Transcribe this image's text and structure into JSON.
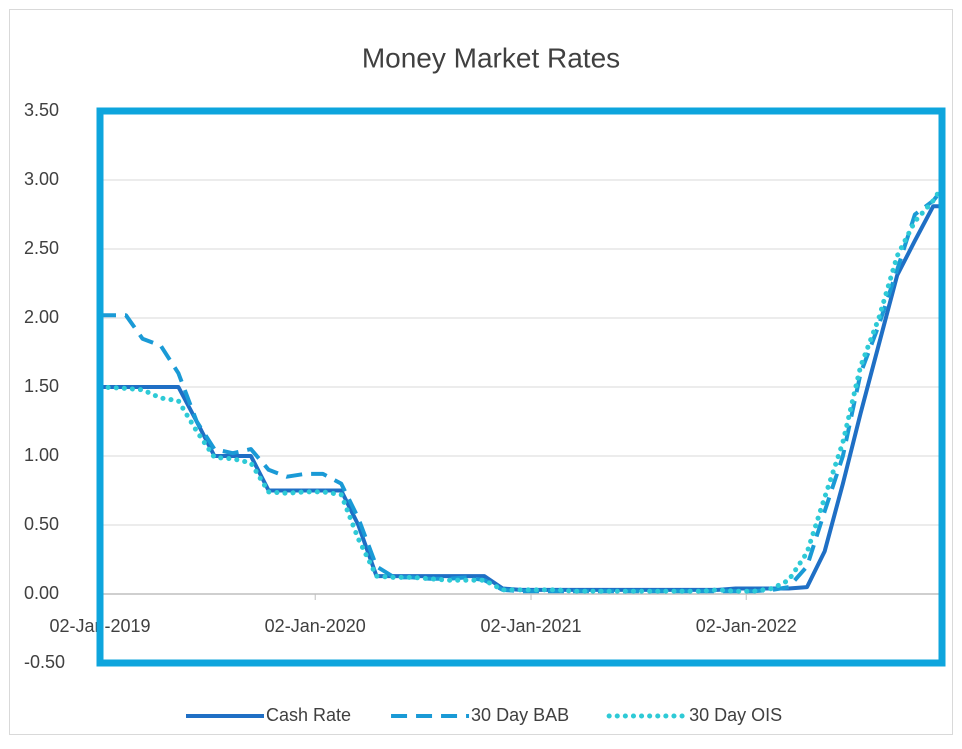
{
  "chart_data": {
    "type": "line",
    "title": "Money Market Rates",
    "x": [
      "2019-01-02",
      "2019-02-15",
      "2019-03-15",
      "2019-04-15",
      "2019-05-15",
      "2019-06-15",
      "2019-07-15",
      "2019-08-15",
      "2019-09-15",
      "2019-10-15",
      "2019-11-15",
      "2019-12-15",
      "2020-01-15",
      "2020-02-15",
      "2020-03-15",
      "2020-04-15",
      "2020-05-15",
      "2020-06-15",
      "2020-07-15",
      "2020-08-15",
      "2020-09-15",
      "2020-10-15",
      "2020-11-15",
      "2020-12-15",
      "2021-01-15",
      "2021-02-15",
      "2021-03-15",
      "2021-04-15",
      "2021-05-15",
      "2021-06-15",
      "2021-07-15",
      "2021-08-15",
      "2021-09-15",
      "2021-10-15",
      "2021-11-15",
      "2021-12-15",
      "2022-01-15",
      "2022-02-15",
      "2022-03-15",
      "2022-04-15",
      "2022-05-15",
      "2022-06-15",
      "2022-07-15",
      "2022-08-15",
      "2022-09-15",
      "2022-10-15",
      "2022-11-15",
      "2022-11-30"
    ],
    "series": [
      {
        "name": "Cash Rate",
        "color": "#1f6fc5",
        "style": "solid",
        "values": [
          1.5,
          1.5,
          1.5,
          1.5,
          1.5,
          1.25,
          1.0,
          1.0,
          1.0,
          0.75,
          0.75,
          0.75,
          0.75,
          0.75,
          0.5,
          0.13,
          0.13,
          0.13,
          0.13,
          0.13,
          0.13,
          0.13,
          0.04,
          0.03,
          0.03,
          0.03,
          0.03,
          0.03,
          0.03,
          0.03,
          0.03,
          0.03,
          0.03,
          0.03,
          0.03,
          0.04,
          0.04,
          0.04,
          0.04,
          0.05,
          0.31,
          0.8,
          1.31,
          1.81,
          2.31,
          2.56,
          2.81,
          2.81
        ]
      },
      {
        "name": "30 Day BAB",
        "color": "#1a9ad6",
        "style": "dashed",
        "values": [
          2.02,
          2.02,
          1.85,
          1.8,
          1.6,
          1.25,
          1.05,
          1.02,
          1.05,
          0.9,
          0.85,
          0.87,
          0.87,
          0.8,
          0.55,
          0.2,
          0.12,
          0.12,
          0.11,
          0.11,
          0.12,
          0.1,
          0.03,
          0.02,
          0.02,
          0.02,
          0.02,
          0.02,
          0.02,
          0.02,
          0.02,
          0.02,
          0.02,
          0.02,
          0.02,
          0.02,
          0.02,
          0.03,
          0.05,
          0.2,
          0.6,
          1.0,
          1.6,
          1.95,
          2.35,
          2.75,
          2.85,
          2.93
        ]
      },
      {
        "name": "30 Day OIS",
        "color": "#2ecad6",
        "style": "dotted",
        "values": [
          1.5,
          1.49,
          1.48,
          1.42,
          1.4,
          1.18,
          0.99,
          0.98,
          0.95,
          0.74,
          0.73,
          0.74,
          0.74,
          0.72,
          0.4,
          0.13,
          0.12,
          0.12,
          0.11,
          0.1,
          0.1,
          0.1,
          0.03,
          0.03,
          0.03,
          0.03,
          0.02,
          0.02,
          0.02,
          0.02,
          0.02,
          0.02,
          0.02,
          0.02,
          0.03,
          0.02,
          0.02,
          0.04,
          0.1,
          0.3,
          0.7,
          1.1,
          1.65,
          2.0,
          2.45,
          2.7,
          2.85,
          2.95
        ]
      }
    ],
    "xlim": [
      "2019-01-02",
      "2022-11-30"
    ],
    "xticks": [
      {
        "value": "2019-01-02",
        "label": "02-Jan-2019"
      },
      {
        "value": "2020-01-02",
        "label": "02-Jan-2020"
      },
      {
        "value": "2021-01-02",
        "label": "02-Jan-2021"
      },
      {
        "value": "2022-01-02",
        "label": "02-Jan-2022"
      }
    ],
    "ylim": [
      -0.5,
      3.5
    ],
    "yticks": [
      {
        "value": -0.5,
        "label": "-0.50"
      },
      {
        "value": 0,
        "label": "0.00"
      },
      {
        "value": 0.5,
        "label": "0.50"
      },
      {
        "value": 1,
        "label": "1.00"
      },
      {
        "value": 1.5,
        "label": "1.50"
      },
      {
        "value": 2,
        "label": "2.00"
      },
      {
        "value": 2.5,
        "label": "2.50"
      },
      {
        "value": 3,
        "label": "3.00"
      },
      {
        "value": 3.5,
        "label": "3.50"
      }
    ],
    "grid": true,
    "legend": "bottom"
  }
}
